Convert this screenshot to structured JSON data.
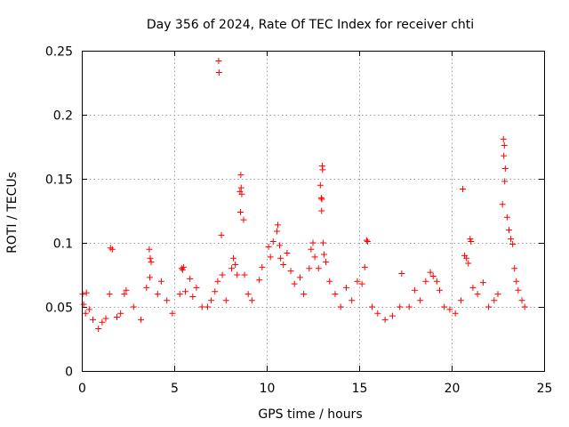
{
  "chart_data": {
    "type": "scatter",
    "title": "Day 356 of 2024, Rate Of TEC Index for receiver chti",
    "xlabel": "GPS time / hours",
    "ylabel": "ROTI / TECUs",
    "xlim": [
      0,
      25
    ],
    "ylim": [
      0,
      0.25
    ],
    "x_ticks": [
      0,
      5,
      10,
      15,
      20,
      25
    ],
    "x_tick_labels": [
      "0",
      "5",
      "10",
      "15",
      "20",
      "25"
    ],
    "y_ticks": [
      0,
      0.05,
      0.1,
      0.15,
      0.2,
      0.25
    ],
    "y_tick_labels": [
      "0",
      "0.05",
      "0.1",
      "0.15",
      "0.2",
      "0.25"
    ],
    "grid": true,
    "marker": "+",
    "color": "#ff0000",
    "series": [
      {
        "name": "ROTI",
        "points": [
          [
            0.05,
            0.06
          ],
          [
            0.1,
            0.052
          ],
          [
            0.2,
            0.045
          ],
          [
            0.25,
            0.061
          ],
          [
            0.4,
            0.048
          ],
          [
            0.6,
            0.04
          ],
          [
            0.9,
            0.033
          ],
          [
            1.1,
            0.038
          ],
          [
            1.3,
            0.041
          ],
          [
            1.55,
            0.096
          ],
          [
            1.65,
            0.095
          ],
          [
            1.5,
            0.06
          ],
          [
            1.9,
            0.042
          ],
          [
            2.1,
            0.045
          ],
          [
            2.3,
            0.06
          ],
          [
            2.4,
            0.063
          ],
          [
            2.8,
            0.05
          ],
          [
            3.2,
            0.04
          ],
          [
            3.5,
            0.065
          ],
          [
            3.65,
            0.095
          ],
          [
            3.7,
            0.088
          ],
          [
            3.75,
            0.085
          ],
          [
            3.68,
            0.073
          ],
          [
            4.1,
            0.06
          ],
          [
            4.3,
            0.07
          ],
          [
            4.6,
            0.055
          ],
          [
            4.9,
            0.045
          ],
          [
            5.3,
            0.06
          ],
          [
            5.4,
            0.08
          ],
          [
            5.5,
            0.081
          ],
          [
            5.45,
            0.079
          ],
          [
            5.6,
            0.062
          ],
          [
            5.85,
            0.072
          ],
          [
            6.0,
            0.058
          ],
          [
            6.2,
            0.065
          ],
          [
            6.5,
            0.05
          ],
          [
            6.8,
            0.05
          ],
          [
            7.0,
            0.055
          ],
          [
            7.2,
            0.062
          ],
          [
            7.35,
            0.07
          ],
          [
            7.4,
            0.242
          ],
          [
            7.42,
            0.233
          ],
          [
            7.55,
            0.106
          ],
          [
            7.6,
            0.075
          ],
          [
            7.8,
            0.055
          ],
          [
            8.1,
            0.08
          ],
          [
            8.2,
            0.088
          ],
          [
            8.3,
            0.083
          ],
          [
            8.4,
            0.075
          ],
          [
            8.55,
            0.14
          ],
          [
            8.6,
            0.153
          ],
          [
            8.62,
            0.143
          ],
          [
            8.65,
            0.138
          ],
          [
            8.58,
            0.124
          ],
          [
            8.75,
            0.118
          ],
          [
            8.8,
            0.075
          ],
          [
            9.0,
            0.06
          ],
          [
            9.2,
            0.055
          ],
          [
            9.6,
            0.071
          ],
          [
            9.75,
            0.081
          ],
          [
            10.1,
            0.097
          ],
          [
            10.2,
            0.089
          ],
          [
            10.35,
            0.101
          ],
          [
            10.55,
            0.109
          ],
          [
            10.6,
            0.114
          ],
          [
            10.7,
            0.098
          ],
          [
            10.75,
            0.088
          ],
          [
            10.9,
            0.083
          ],
          [
            11.1,
            0.092
          ],
          [
            11.3,
            0.078
          ],
          [
            11.5,
            0.068
          ],
          [
            11.8,
            0.073
          ],
          [
            12.0,
            0.06
          ],
          [
            12.3,
            0.08
          ],
          [
            12.4,
            0.095
          ],
          [
            12.5,
            0.1
          ],
          [
            12.6,
            0.089
          ],
          [
            12.8,
            0.08
          ],
          [
            12.9,
            0.145
          ],
          [
            12.95,
            0.135
          ],
          [
            12.98,
            0.134
          ],
          [
            13.0,
            0.16
          ],
          [
            13.02,
            0.157
          ],
          [
            12.97,
            0.125
          ],
          [
            13.05,
            0.1
          ],
          [
            13.1,
            0.091
          ],
          [
            13.2,
            0.085
          ],
          [
            13.4,
            0.07
          ],
          [
            13.7,
            0.06
          ],
          [
            14.0,
            0.05
          ],
          [
            14.3,
            0.065
          ],
          [
            14.6,
            0.055
          ],
          [
            14.9,
            0.07
          ],
          [
            15.15,
            0.068
          ],
          [
            15.3,
            0.081
          ],
          [
            15.4,
            0.102
          ],
          [
            15.45,
            0.101
          ],
          [
            15.7,
            0.05
          ],
          [
            16.0,
            0.045
          ],
          [
            16.4,
            0.04
          ],
          [
            16.8,
            0.043
          ],
          [
            17.2,
            0.05
          ],
          [
            17.3,
            0.076
          ],
          [
            17.7,
            0.05
          ],
          [
            18.0,
            0.063
          ],
          [
            18.3,
            0.055
          ],
          [
            18.6,
            0.07
          ],
          [
            18.85,
            0.077
          ],
          [
            19.0,
            0.074
          ],
          [
            19.2,
            0.07
          ],
          [
            19.35,
            0.063
          ],
          [
            19.6,
            0.05
          ],
          [
            19.9,
            0.048
          ],
          [
            20.2,
            0.045
          ],
          [
            20.5,
            0.055
          ],
          [
            20.6,
            0.142
          ],
          [
            20.7,
            0.09
          ],
          [
            20.8,
            0.088
          ],
          [
            20.9,
            0.084
          ],
          [
            21.0,
            0.103
          ],
          [
            21.05,
            0.101
          ],
          [
            21.15,
            0.065
          ],
          [
            21.4,
            0.06
          ],
          [
            21.7,
            0.069
          ],
          [
            22.0,
            0.05
          ],
          [
            22.3,
            0.055
          ],
          [
            22.5,
            0.06
          ],
          [
            22.75,
            0.13
          ],
          [
            22.8,
            0.181
          ],
          [
            22.85,
            0.176
          ],
          [
            22.82,
            0.168
          ],
          [
            22.9,
            0.158
          ],
          [
            22.87,
            0.148
          ],
          [
            23.0,
            0.12
          ],
          [
            23.1,
            0.11
          ],
          [
            23.2,
            0.103
          ],
          [
            23.3,
            0.099
          ],
          [
            23.4,
            0.08
          ],
          [
            23.5,
            0.07
          ],
          [
            23.6,
            0.063
          ],
          [
            23.8,
            0.055
          ],
          [
            23.95,
            0.05
          ]
        ]
      }
    ]
  }
}
